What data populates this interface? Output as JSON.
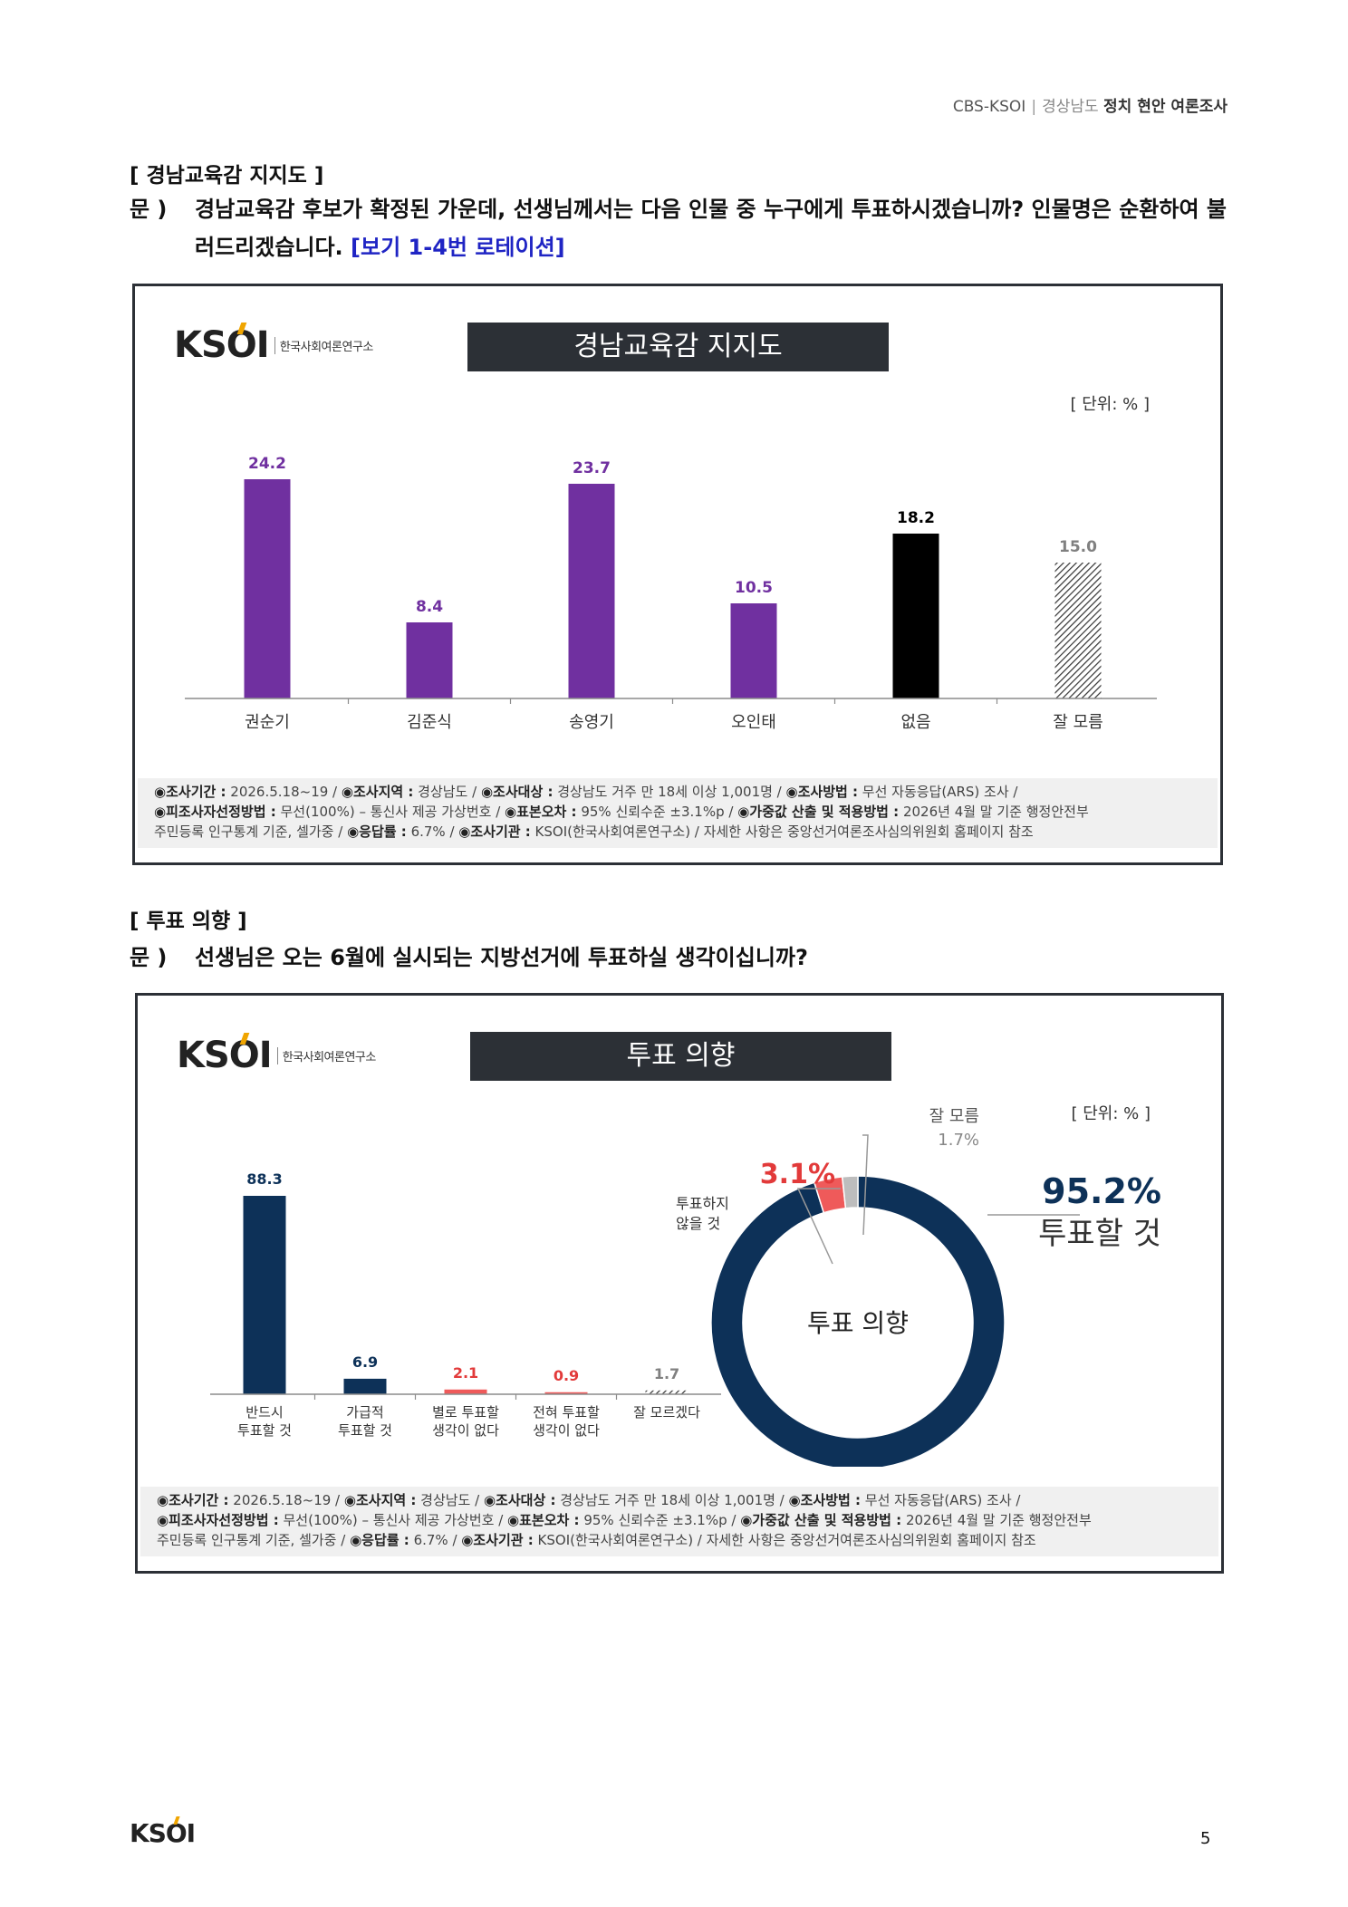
{
  "header": {
    "org": "CBS-KSOI",
    "separator": "|",
    "region": "경상남도",
    "topic": "정치 현안 여론조사"
  },
  "section1": {
    "title": "[ 경남교육감 지지도 ]",
    "q_label": "문 )",
    "question": "경남교육감 후보가 확정된 가운데, 선생님께서는 다음 인물 중 누구에게 투표하시겠습니까? 인물명은 순환하여 불러드리겠습니다.",
    "rotation_note": "[보기 1-4번 로테이션]"
  },
  "chart1": {
    "logo_mark": "KSOI",
    "logo_sub": "한국사회여론연구소",
    "banner": "경남교육감 지지도",
    "unit": "[ 단위: % ]",
    "chart_data": {
      "type": "bar",
      "categories": [
        "권순기",
        "김준식",
        "송영기",
        "오인태",
        "없음",
        "잘 모름"
      ],
      "values": [
        24.2,
        8.4,
        23.7,
        10.5,
        18.2,
        15.0
      ],
      "value_labels": [
        "24.2",
        "8.4",
        "23.7",
        "10.5",
        "18.2",
        "15.0"
      ],
      "colors": [
        "#7030a0",
        "#7030a0",
        "#7030a0",
        "#7030a0",
        "#000000",
        "hatch"
      ],
      "label_colors": [
        "#7030a0",
        "#7030a0",
        "#7030a0",
        "#7030a0",
        "#000000",
        "#808080"
      ],
      "ylim": [
        0,
        30
      ],
      "grid": false
    }
  },
  "footer": {
    "l1_k1": "◉조사기간 :",
    "l1_v1": " 2026.5.18~19 / ",
    "l1_k2": "◉조사지역 :",
    "l1_v2": " 경상남도 / ",
    "l1_k3": "◉조사대상 :",
    "l1_v3": " 경상남도 거주 만 18세 이상 1,001명 / ",
    "l1_k4": "◉조사방법 :",
    "l1_v4": " 무선 자동응답(ARS) 조사 /",
    "l2_k1": "◉피조사자선정방법 :",
    "l2_v1": " 무선(100%) – 통신사 제공 가상번호 / ",
    "l2_k2": "◉표본오차 :",
    "l2_v2": " 95% 신뢰수준 ±3.1%p / ",
    "l2_k3": "◉가중값 산출 및 적용방법 :",
    "l2_v3": " 2026년 4월 말 기준 행정안전부",
    "l3_v1": "주민등록 인구통계 기준, 셀가중 / ",
    "l3_k1": "◉응답률 :",
    "l3_v2": " 6.7% / ",
    "l3_k2": "◉조사기관 :",
    "l3_v3": " KSOI(한국사회여론연구소) / 자세한 사항은 중앙선거여론조사심의위원회 홈페이지 참조"
  },
  "section2": {
    "title": "[ 투표 의향 ]",
    "q_label": "문 )",
    "question": "선생님은 오는 6월에 실시되는 지방선거에 투표하실 생각이십니까?"
  },
  "chart2": {
    "logo_mark": "KSOI",
    "logo_sub": "한국사회여론연구소",
    "banner": "투표 의향",
    "unit": "[ 단위: % ]",
    "chart_data": [
      {
        "type": "bar",
        "categories": [
          [
            "반드시",
            "투표할 것"
          ],
          [
            "가급적",
            "투표할 것"
          ],
          [
            "별로 투표할",
            "생각이 없다"
          ],
          [
            "전혀 투표할",
            "생각이 없다"
          ],
          [
            "잘 모르겠다"
          ]
        ],
        "values": [
          88.3,
          6.9,
          2.1,
          0.9,
          1.7
        ],
        "value_labels": [
          "88.3",
          "6.9",
          "2.1",
          "0.9",
          "1.7"
        ],
        "colors": [
          "#0d3158",
          "#0d3158",
          "#ef5a5a",
          "#ef5a5a",
          "hatch"
        ],
        "label_colors": [
          "#0d3158",
          "#0d3158",
          "#e23a3a",
          "#e23a3a",
          "#808080"
        ],
        "ylim": [
          0,
          100
        ],
        "grid": false
      },
      {
        "type": "pie",
        "donut": true,
        "center_label": "투표 의향",
        "slices": [
          {
            "name": "투표할 것",
            "value": 95.2,
            "label": "95.2%",
            "color": "#0d3158"
          },
          {
            "name": "투표하지 않을 것",
            "value": 3.1,
            "label": "3.1%",
            "color": "#ef5a5a"
          },
          {
            "name": "잘 모름",
            "value": 1.7,
            "label": "1.7%",
            "color": "#bdbdbd"
          }
        ]
      }
    ],
    "donut_labels": {
      "vote_pct": "95.2%",
      "vote_name": "투표할 것",
      "novote_pct": "3.1%",
      "novote_name_1": "투표하지",
      "novote_name_2": "않을 것",
      "dk_name": "잘 모름",
      "dk_pct": "1.7%"
    }
  },
  "page": {
    "logo": "KSOI",
    "number": "5"
  }
}
